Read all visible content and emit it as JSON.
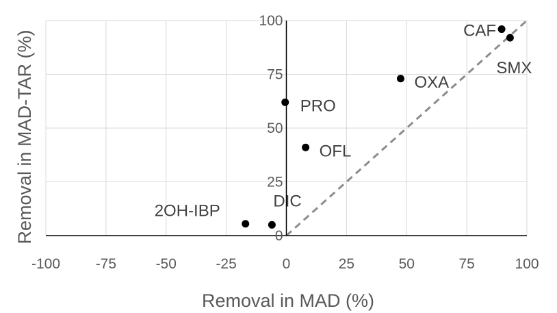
{
  "chart_data": {
    "type": "scatter",
    "title": "",
    "xlabel": "Removal in MAD (%)",
    "ylabel": "Removal in MAD-TAR (%)",
    "xlim": [
      -100,
      100
    ],
    "ylim": [
      0,
      100
    ],
    "x_ticks": [
      -100,
      -75,
      -50,
      -25,
      0,
      25,
      50,
      75,
      100
    ],
    "y_ticks": [
      0,
      25,
      50,
      75,
      100
    ],
    "grid": true,
    "reference_line": {
      "style": "dashed",
      "color": "#8c8c8c",
      "from": [
        0,
        0
      ],
      "to": [
        100,
        100
      ]
    },
    "marker_color": "#000000",
    "series": [
      {
        "points": [
          {
            "label": "CAF",
            "x": 89.5,
            "y": 96
          },
          {
            "label": "SMX",
            "x": 93,
            "y": 92
          },
          {
            "label": "OXA",
            "x": 47.5,
            "y": 73
          },
          {
            "label": "PRO",
            "x": -0.5,
            "y": 62
          },
          {
            "label": "OFL",
            "x": 8,
            "y": 41
          },
          {
            "label": "DIC",
            "x": -6,
            "y": 5
          },
          {
            "label": "2OH-IBP",
            "x": -17,
            "y": 5.5
          }
        ]
      }
    ]
  }
}
